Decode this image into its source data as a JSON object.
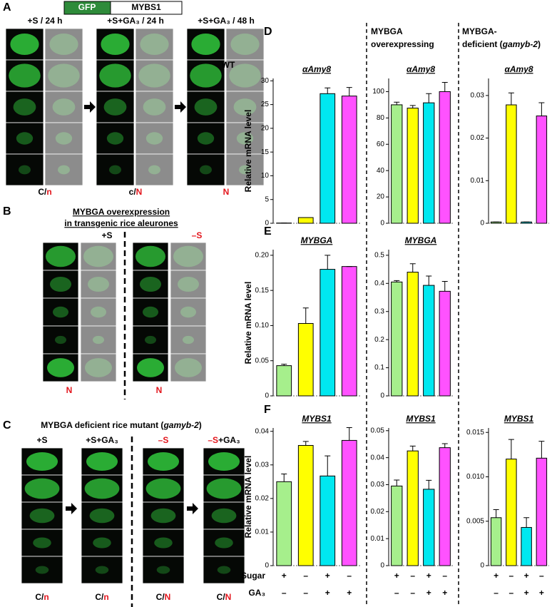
{
  "panel_a": {
    "label": "A",
    "construct": [
      "GFP",
      "MYBS1"
    ],
    "columns": [
      [
        {
          "text": "+S / 24 h"
        }
      ],
      [
        {
          "text": "+S+GA₃ / 24 h"
        }
      ],
      [
        {
          "text": "+S+GA₃ / 48 h"
        }
      ]
    ],
    "locations": [
      [
        {
          "text": "C/"
        },
        {
          "text": "n",
          "color": "#e3161d"
        }
      ],
      [
        {
          "text": "c/"
        },
        {
          "text": "N",
          "color": "#e3161d"
        }
      ],
      [
        {
          "text": "N",
          "color": "#e3161d"
        }
      ]
    ]
  },
  "panel_b": {
    "label": "B",
    "title": [
      "MYBGA overexpression",
      "in  transgenic rice aleurones"
    ],
    "columns": [
      [
        {
          "text": "+S"
        }
      ],
      [
        {
          "text": "–S",
          "color": "#e3161d"
        }
      ]
    ],
    "locations": [
      [
        {
          "text": "N",
          "color": "#e3161d"
        }
      ],
      [
        {
          "text": "N",
          "color": "#e3161d"
        }
      ]
    ]
  },
  "panel_c": {
    "label": "C",
    "title": [
      {
        "text": "MYBGA deficient rice mutant ("
      },
      {
        "text": "gamyb-2",
        "italic": true
      },
      {
        "text": ")"
      }
    ],
    "columns": [
      [
        {
          "text": "+S"
        }
      ],
      [
        {
          "text": "+S+GA₃"
        }
      ],
      [
        {
          "text": "–S",
          "color": "#e3161d"
        }
      ],
      [
        {
          "text": "–S",
          "color": "#e3161d"
        },
        {
          "text": "+GA₃"
        }
      ]
    ],
    "locations": [
      [
        {
          "text": "C/"
        },
        {
          "text": "n",
          "color": "#e3161d"
        }
      ],
      [
        {
          "text": "C/"
        },
        {
          "text": "n",
          "color": "#e3161d"
        }
      ],
      [
        {
          "text": "C/"
        },
        {
          "text": "N",
          "color": "#e3161d"
        }
      ],
      [
        {
          "text": "C/"
        },
        {
          "text": "N",
          "color": "#e3161d"
        }
      ]
    ]
  },
  "panels_right": {
    "labels": [
      "D",
      "E",
      "F"
    ],
    "headers": [
      [
        [
          {
            "text": "WT"
          }
        ]
      ],
      [
        [
          {
            "text": "MYBGA"
          }
        ],
        [
          {
            "text": "overexpressing"
          }
        ]
      ],
      [
        [
          {
            "text": "MYBGA-"
          }
        ],
        [
          {
            "text": "deficient ("
          },
          {
            "text": "gamyb-2",
            "italic": true
          },
          {
            "text": ")"
          }
        ]
      ]
    ]
  },
  "treatments": {
    "rows": [
      {
        "label": "Sugar",
        "signs": [
          "+",
          "–",
          "+",
          "–"
        ]
      },
      {
        "label": "GA₃",
        "signs": [
          "–",
          "–",
          "+",
          "+"
        ]
      }
    ]
  },
  "chart_data": [
    {
      "type": "bar",
      "title": "αAmy8",
      "ylabel": "Relative mRNA level",
      "categories": [
        null,
        null,
        null,
        null
      ],
      "values": [
        0.05,
        1.2,
        27.3,
        26.8
      ],
      "errors": [
        0,
        0,
        1.2,
        1.8
      ],
      "colors": [
        "#a6ef8c",
        "#ffff00",
        "#00e8f0",
        "#ff52ff"
      ],
      "ylim": [
        0,
        30.5
      ],
      "yticks": [
        0,
        5,
        10,
        15,
        20,
        25,
        30
      ]
    },
    {
      "type": "bar",
      "title": "αAmy8",
      "categories": [
        null,
        null,
        null,
        null
      ],
      "values": [
        90,
        87.5,
        91.5,
        100
      ],
      "errors": [
        2,
        2,
        7,
        7
      ],
      "colors": [
        "#a6ef8c",
        "#ffff00",
        "#00e8f0",
        "#ff52ff"
      ],
      "ylim": [
        0,
        110
      ],
      "yticks": [
        0,
        20,
        40,
        60,
        80,
        100
      ]
    },
    {
      "type": "bar",
      "title": "αAmy8",
      "categories": [
        null,
        null,
        null,
        null
      ],
      "values": [
        0.0003,
        0.0278,
        0.0003,
        0.0252
      ],
      "errors": [
        0,
        0.0028,
        0,
        0.0031
      ],
      "colors": [
        "#a6ef8c",
        "#ffff00",
        "#00e8f0",
        "#ff52ff"
      ],
      "ylim": [
        0,
        0.034
      ],
      "yticks": [
        0,
        0.01,
        0.02,
        0.03
      ]
    },
    {
      "type": "bar",
      "title": "MYBGA",
      "ylabel": "Relative mRNA level",
      "categories": [
        null,
        null,
        null,
        null
      ],
      "values": [
        0.043,
        0.103,
        0.18,
        0.184
      ],
      "errors": [
        0.002,
        0.022,
        0.02,
        0
      ],
      "colors": [
        "#a6ef8c",
        "#ffff00",
        "#00e8f0",
        "#ff52ff"
      ],
      "ylim": [
        0,
        0.208
      ],
      "yticks": [
        0,
        0.05,
        {
          "value": 0.1,
          "label": "0.10"
        },
        0.15,
        {
          "value": 0.2,
          "label": "0.20"
        }
      ]
    },
    {
      "type": "bar",
      "title": "MYBGA",
      "categories": [
        null,
        null,
        null,
        null
      ],
      "values": [
        0.405,
        0.44,
        0.393,
        0.372
      ],
      "errors": [
        0.005,
        0.03,
        0.033,
        0.035
      ],
      "colors": [
        "#a6ef8c",
        "#ffff00",
        "#00e8f0",
        "#ff52ff"
      ],
      "ylim": [
        0,
        0.52
      ],
      "yticks": [
        0,
        0.1,
        0.2,
        0.3,
        0.4,
        0.5
      ]
    },
    {
      "type": "bar",
      "title": "MYBS1",
      "ylabel": "Relative mRNA level",
      "categories": [
        null,
        null,
        null,
        null
      ],
      "values": [
        0.025,
        0.0358,
        0.0267,
        0.0373
      ],
      "errors": [
        0.0023,
        0.0012,
        0.006,
        0.0038
      ],
      "colors": [
        "#a6ef8c",
        "#ffff00",
        "#00e8f0",
        "#ff52ff"
      ],
      "ylim": [
        0,
        0.041
      ],
      "yticks": [
        0,
        0.01,
        0.02,
        0.03,
        0.04
      ]
    },
    {
      "type": "bar",
      "title": "MYBS1",
      "categories": [
        null,
        null,
        null,
        null
      ],
      "values": [
        0.0295,
        0.0425,
        0.0283,
        0.0437
      ],
      "errors": [
        0.0022,
        0.0018,
        0.0033,
        0.0015
      ],
      "colors": [
        "#a6ef8c",
        "#ffff00",
        "#00e8f0",
        "#ff52ff"
      ],
      "ylim": [
        0,
        0.051
      ],
      "yticks": [
        0,
        0.01,
        0.02,
        0.03,
        0.04,
        0.05
      ]
    },
    {
      "type": "bar",
      "title": "MYBS1",
      "categories": [
        null,
        null,
        null,
        null
      ],
      "values": [
        0.0054,
        0.012,
        0.0043,
        0.0121
      ],
      "errors": [
        0.0009,
        0.0022,
        0.0011,
        0.0019
      ],
      "colors": [
        "#a6ef8c",
        "#ffff00",
        "#00e8f0",
        "#ff52ff"
      ],
      "ylim": [
        0,
        0.0155
      ],
      "yticks": [
        0,
        0.005,
        {
          "value": 0.01,
          "label": "0.010"
        },
        {
          "value": 0.015,
          "label": "0.015"
        }
      ]
    }
  ]
}
